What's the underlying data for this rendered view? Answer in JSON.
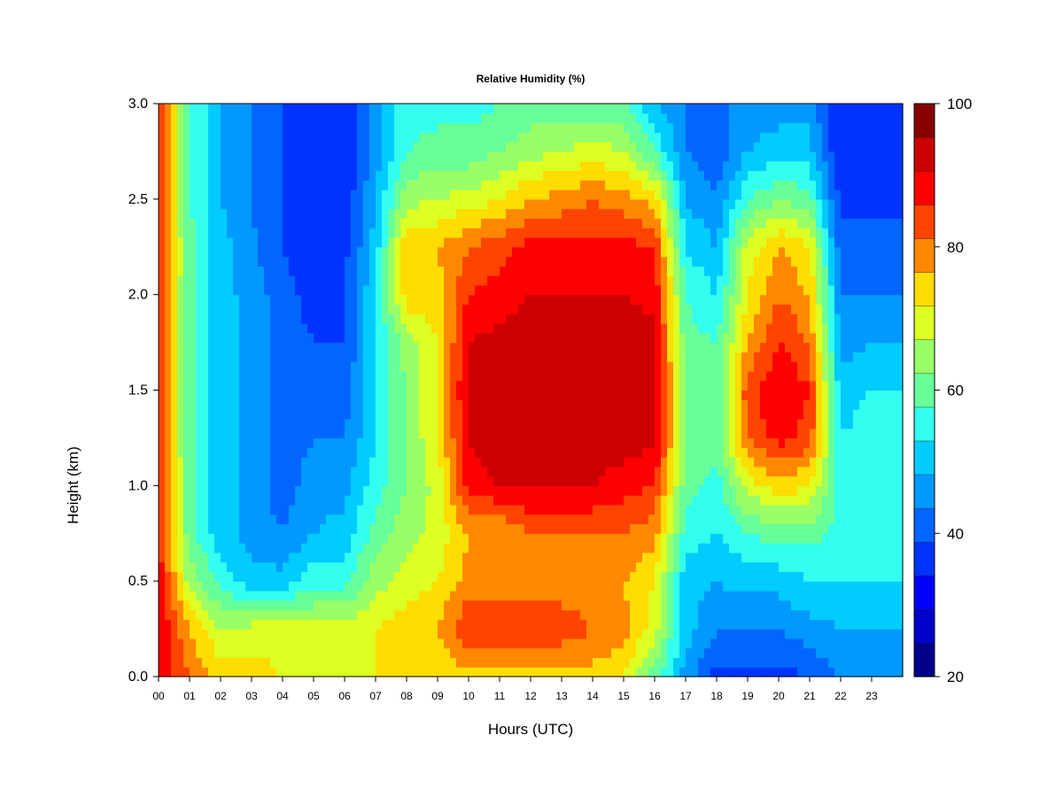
{
  "chart_data": {
    "type": "heatmap",
    "title": "Relative Humidity (%)",
    "xlabel": "Hours (UTC)",
    "ylabel": "Height (km)",
    "xlim": [
      0,
      24
    ],
    "ylim": [
      0.0,
      3.0
    ],
    "x_ticks": [
      "00",
      "01",
      "02",
      "03",
      "04",
      "05",
      "06",
      "07",
      "08",
      "09",
      "10",
      "11",
      "12",
      "13",
      "14",
      "15",
      "16",
      "17",
      "18",
      "19",
      "20",
      "21",
      "22",
      "23"
    ],
    "y_ticks": [
      "0.0",
      "0.5",
      "1.0",
      "1.5",
      "2.0",
      "2.5",
      "3.0"
    ],
    "colorbar": {
      "range": [
        20,
        100
      ],
      "step": 5,
      "ticks": [
        "20",
        "40",
        "60",
        "80",
        "100"
      ],
      "colors": [
        "#00008b",
        "#0000cd",
        "#0000ff",
        "#0033ff",
        "#0066ff",
        "#0099ff",
        "#00ccff",
        "#33ffee",
        "#66ff99",
        "#99ff66",
        "#ddff22",
        "#ffdd00",
        "#ff8800",
        "#ff4400",
        "#ff0000",
        "#cc0000",
        "#880000"
      ]
    },
    "hours": [
      0,
      1,
      2,
      3,
      4,
      5,
      6,
      7,
      8,
      9,
      10,
      11,
      12,
      13,
      14,
      15,
      16,
      17,
      18,
      19,
      20,
      21,
      22,
      23
    ],
    "heights_km": [
      0.0,
      0.25,
      0.5,
      0.75,
      1.0,
      1.25,
      1.5,
      1.75,
      2.0,
      2.25,
      2.5,
      2.75,
      3.0
    ],
    "rh_profiles": [
      [
        95,
        95,
        93,
        92,
        90,
        88,
        88,
        88,
        88,
        90,
        90,
        92,
        92
      ],
      [
        85,
        80,
        68,
        62,
        62,
        62,
        62,
        62,
        62,
        62,
        60,
        60,
        60
      ],
      [
        78,
        70,
        58,
        52,
        52,
        52,
        52,
        52,
        52,
        52,
        50,
        50,
        50
      ],
      [
        78,
        72,
        52,
        48,
        48,
        48,
        48,
        48,
        48,
        46,
        45,
        45,
        45
      ],
      [
        75,
        72,
        52,
        45,
        42,
        42,
        42,
        42,
        42,
        40,
        40,
        40,
        40
      ],
      [
        75,
        72,
        58,
        50,
        48,
        45,
        42,
        40,
        38,
        36,
        35,
        35,
        35
      ],
      [
        75,
        72,
        58,
        52,
        48,
        45,
        42,
        40,
        40,
        38,
        36,
        35,
        35
      ],
      [
        75,
        75,
        68,
        62,
        58,
        55,
        55,
        55,
        55,
        52,
        50,
        48,
        48
      ],
      [
        75,
        78,
        72,
        68,
        65,
        65,
        65,
        68,
        78,
        80,
        68,
        60,
        58
      ],
      [
        75,
        80,
        75,
        72,
        72,
        75,
        75,
        75,
        78,
        80,
        70,
        62,
        58
      ],
      [
        78,
        90,
        82,
        80,
        92,
        95,
        97,
        95,
        90,
        85,
        72,
        62,
        58
      ],
      [
        78,
        90,
        82,
        80,
        95,
        98,
        99,
        97,
        92,
        88,
        75,
        65,
        60
      ],
      [
        78,
        88,
        82,
        85,
        96,
        99,
        99,
        98,
        95,
        92,
        80,
        68,
        62
      ],
      [
        78,
        88,
        82,
        85,
        96,
        99,
        99,
        98,
        95,
        92,
        82,
        70,
        62
      ],
      [
        78,
        85,
        82,
        85,
        95,
        98,
        99,
        98,
        95,
        92,
        85,
        72,
        62
      ],
      [
        75,
        82,
        80,
        85,
        92,
        98,
        99,
        98,
        95,
        92,
        82,
        70,
        62
      ],
      [
        62,
        72,
        75,
        82,
        90,
        96,
        97,
        96,
        94,
        90,
        78,
        60,
        50
      ],
      [
        48,
        52,
        52,
        58,
        62,
        65,
        65,
        62,
        60,
        55,
        50,
        45,
        45
      ],
      [
        38,
        45,
        50,
        55,
        58,
        62,
        62,
        60,
        55,
        50,
        45,
        42,
        42
      ],
      [
        38,
        45,
        52,
        60,
        72,
        85,
        88,
        80,
        75,
        72,
        60,
        50,
        48
      ],
      [
        38,
        45,
        52,
        62,
        78,
        92,
        95,
        90,
        85,
        80,
        65,
        52,
        48
      ],
      [
        40,
        48,
        55,
        62,
        75,
        88,
        90,
        85,
        80,
        75,
        62,
        52,
        48
      ],
      [
        45,
        50,
        55,
        58,
        58,
        55,
        52,
        48,
        45,
        42,
        38,
        35,
        35
      ],
      [
        48,
        50,
        55,
        58,
        58,
        58,
        55,
        50,
        45,
        42,
        38,
        35,
        35
      ]
    ]
  }
}
